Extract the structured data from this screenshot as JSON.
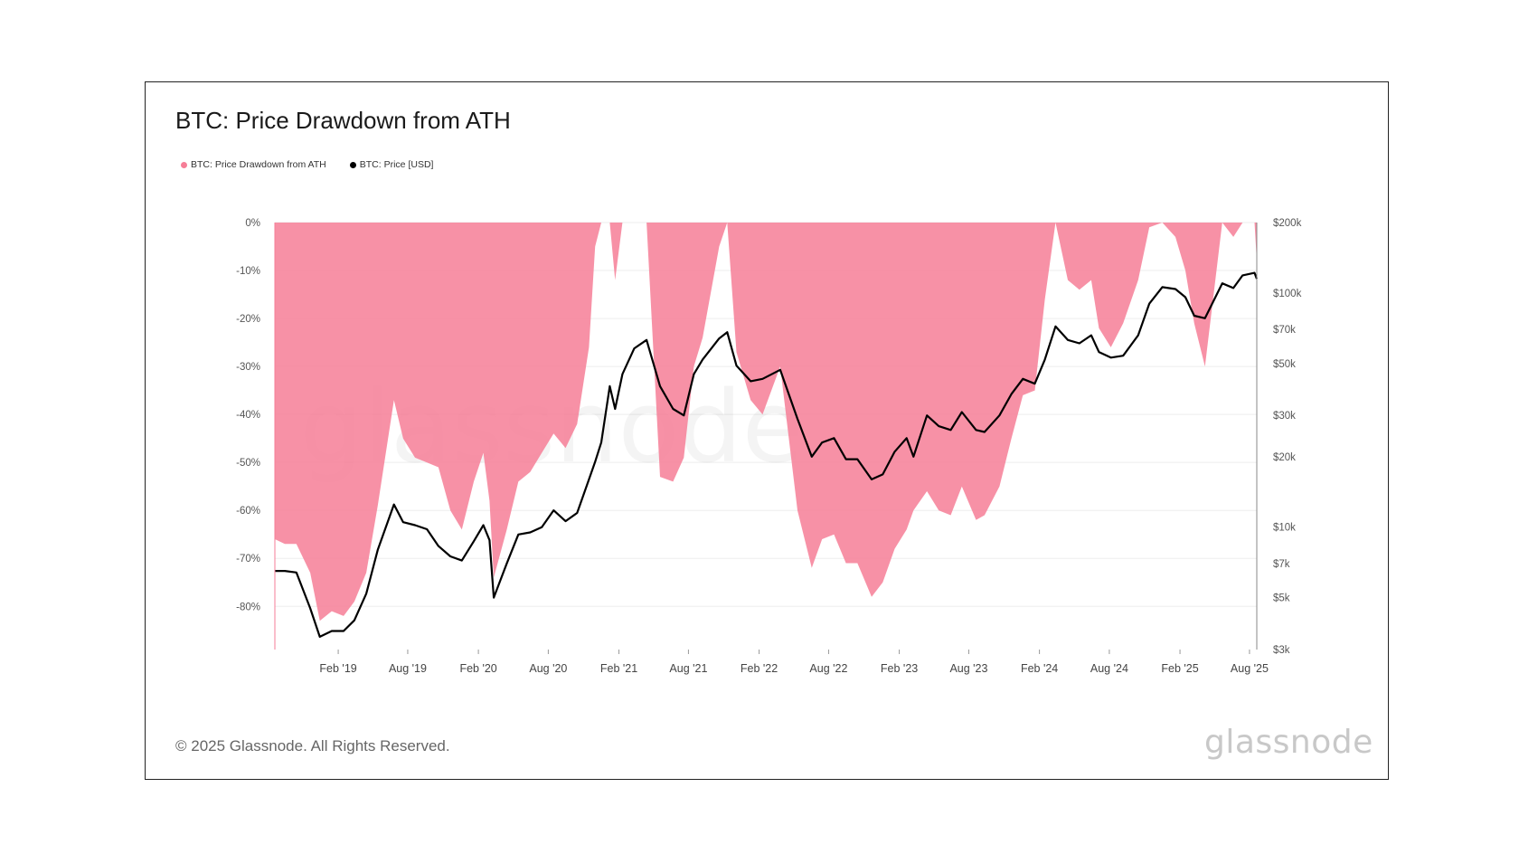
{
  "title": "BTC: Price Drawdown from ATH",
  "legend": [
    {
      "label": "BTC: Price Drawdown from ATH",
      "color": "#f67e97"
    },
    {
      "label": "BTC: Price [USD]",
      "color": "#000000"
    }
  ],
  "footer": "© 2025 Glassnode. All Rights Reserved.",
  "brand": "glassnode",
  "watermark": "glassnode",
  "chart_data": {
    "type": "area",
    "title": "BTC: Price Drawdown from ATH",
    "x_ticks": [
      "Feb '19",
      "Aug '19",
      "Feb '20",
      "Aug '20",
      "Feb '21",
      "Aug '21",
      "Feb '22",
      "Aug '22",
      "Feb '23",
      "Aug '23",
      "Feb '24",
      "Aug '24",
      "Feb '25",
      "Aug '25"
    ],
    "y_left_ticks": [
      "0%",
      "-10%",
      "-20%",
      "-30%",
      "-40%",
      "-50%",
      "-60%",
      "-70%",
      "-80%"
    ],
    "y_left_lim": [
      -89,
      0
    ],
    "y_right_ticks": [
      "$200k",
      "$100k",
      "$70k",
      "$50k",
      "$30k",
      "$20k",
      "$10k",
      "$7k",
      "$5k",
      "$3k"
    ],
    "y_right_scale": "log",
    "y_right_lim": [
      3000,
      200000
    ],
    "x_range": [
      "2018-08-20",
      "2025-08-20"
    ],
    "series": [
      {
        "name": "BTC: Price Drawdown from ATH",
        "type": "area",
        "color": "#f67e97",
        "x": [
          "2018-08-20",
          "2018-09-15",
          "2018-10-15",
          "2018-11-20",
          "2018-12-15",
          "2019-01-15",
          "2019-02-15",
          "2019-03-15",
          "2019-04-15",
          "2019-05-15",
          "2019-06-26",
          "2019-07-20",
          "2019-08-20",
          "2019-09-20",
          "2019-10-20",
          "2019-11-20",
          "2019-12-20",
          "2020-01-20",
          "2020-02-14",
          "2020-03-01",
          "2020-03-12",
          "2020-04-15",
          "2020-05-15",
          "2020-06-15",
          "2020-07-15",
          "2020-08-15",
          "2020-09-15",
          "2020-10-15",
          "2020-11-15",
          "2020-12-01",
          "2020-12-17",
          "2021-01-08",
          "2021-01-22",
          "2021-02-10",
          "2021-03-13",
          "2021-04-14",
          "2021-05-19",
          "2021-06-22",
          "2021-07-20",
          "2021-08-15",
          "2021-09-07",
          "2021-10-20",
          "2021-11-10",
          "2021-12-04",
          "2022-01-10",
          "2022-02-10",
          "2022-03-28",
          "2022-05-12",
          "2022-06-18",
          "2022-07-15",
          "2022-08-15",
          "2022-09-15",
          "2022-10-15",
          "2022-11-21",
          "2022-12-20",
          "2023-01-20",
          "2023-02-20",
          "2023-03-10",
          "2023-04-14",
          "2023-05-15",
          "2023-06-15",
          "2023-07-14",
          "2023-08-20",
          "2023-09-11",
          "2023-10-20",
          "2023-11-20",
          "2023-12-20",
          "2024-01-20",
          "2024-02-15",
          "2024-03-14",
          "2024-04-15",
          "2024-05-15",
          "2024-06-15",
          "2024-07-05",
          "2024-08-05",
          "2024-09-06",
          "2024-10-15",
          "2024-11-13",
          "2024-12-17",
          "2025-01-20",
          "2025-02-15",
          "2025-03-10",
          "2025-04-07",
          "2025-05-22",
          "2025-06-20",
          "2025-07-14",
          "2025-08-14",
          "2025-08-20"
        ],
        "values": [
          -66,
          -67,
          -67,
          -73,
          -83,
          -81,
          -82,
          -79,
          -73,
          -59,
          -37,
          -45,
          -49,
          -50,
          -51,
          -60,
          -64,
          -54,
          -48,
          -58,
          -74,
          -64,
          -54,
          -52,
          -48,
          -44,
          -47,
          -42,
          -26,
          -5,
          0,
          0,
          -12,
          0,
          0,
          0,
          -53,
          -54,
          -49,
          -30,
          -24,
          -5,
          0,
          -27,
          -37,
          -40,
          -30,
          -60,
          -72,
          -66,
          -65,
          -71,
          -71,
          -78,
          -75,
          -68,
          -64,
          -60,
          -56,
          -60,
          -61,
          -55,
          -62,
          -61,
          -55,
          -45,
          -36,
          -35,
          -16,
          0,
          -12,
          -14,
          -12,
          -22,
          -26,
          -21,
          -12,
          -1,
          0,
          -3,
          -10,
          -21,
          -30,
          0,
          -3,
          0,
          0,
          -8
        ]
      },
      {
        "name": "BTC: Price [USD]",
        "type": "line",
        "color": "#000000",
        "x": [
          "2018-08-20",
          "2018-09-15",
          "2018-10-15",
          "2018-11-20",
          "2018-12-15",
          "2019-01-15",
          "2019-02-15",
          "2019-03-15",
          "2019-04-15",
          "2019-05-15",
          "2019-06-26",
          "2019-07-20",
          "2019-08-20",
          "2019-09-20",
          "2019-10-20",
          "2019-11-20",
          "2019-12-20",
          "2020-01-20",
          "2020-02-14",
          "2020-03-01",
          "2020-03-12",
          "2020-04-15",
          "2020-05-15",
          "2020-06-15",
          "2020-07-15",
          "2020-08-15",
          "2020-09-15",
          "2020-10-15",
          "2020-11-15",
          "2020-12-01",
          "2020-12-17",
          "2021-01-08",
          "2021-01-22",
          "2021-02-10",
          "2021-03-13",
          "2021-04-14",
          "2021-05-19",
          "2021-06-22",
          "2021-07-20",
          "2021-08-15",
          "2021-09-07",
          "2021-10-20",
          "2021-11-10",
          "2021-12-04",
          "2022-01-10",
          "2022-02-10",
          "2022-03-28",
          "2022-05-12",
          "2022-06-18",
          "2022-07-15",
          "2022-08-15",
          "2022-09-15",
          "2022-10-15",
          "2022-11-21",
          "2022-12-20",
          "2023-01-20",
          "2023-02-20",
          "2023-03-10",
          "2023-04-14",
          "2023-05-15",
          "2023-06-15",
          "2023-07-14",
          "2023-08-20",
          "2023-09-11",
          "2023-10-20",
          "2023-11-20",
          "2023-12-20",
          "2024-01-20",
          "2024-02-15",
          "2024-03-14",
          "2024-04-15",
          "2024-05-15",
          "2024-06-15",
          "2024-07-05",
          "2024-08-05",
          "2024-09-06",
          "2024-10-15",
          "2024-11-13",
          "2024-12-17",
          "2025-01-20",
          "2025-02-15",
          "2025-03-10",
          "2025-04-07",
          "2025-05-22",
          "2025-06-20",
          "2025-07-14",
          "2025-08-14",
          "2025-08-20"
        ],
        "values": [
          6500,
          6500,
          6400,
          4500,
          3400,
          3600,
          3600,
          4000,
          5200,
          8000,
          12500,
          10500,
          10200,
          9800,
          8300,
          7500,
          7200,
          8700,
          10200,
          8800,
          5000,
          7000,
          9300,
          9500,
          10000,
          11800,
          10600,
          11500,
          16000,
          19000,
          23000,
          40000,
          32000,
          45000,
          58000,
          63000,
          40000,
          32000,
          30000,
          45000,
          52000,
          64000,
          68000,
          49000,
          42000,
          43000,
          47000,
          29000,
          20000,
          23000,
          24000,
          19500,
          19500,
          16000,
          16800,
          21000,
          24000,
          20000,
          30000,
          27000,
          26000,
          31000,
          26000,
          25500,
          30000,
          37000,
          43000,
          41000,
          52000,
          72000,
          63000,
          61000,
          66000,
          56000,
          53000,
          54000,
          66000,
          90000,
          106000,
          104000,
          96000,
          80000,
          78000,
          110000,
          105000,
          119000,
          122000,
          115000
        ]
      }
    ]
  }
}
